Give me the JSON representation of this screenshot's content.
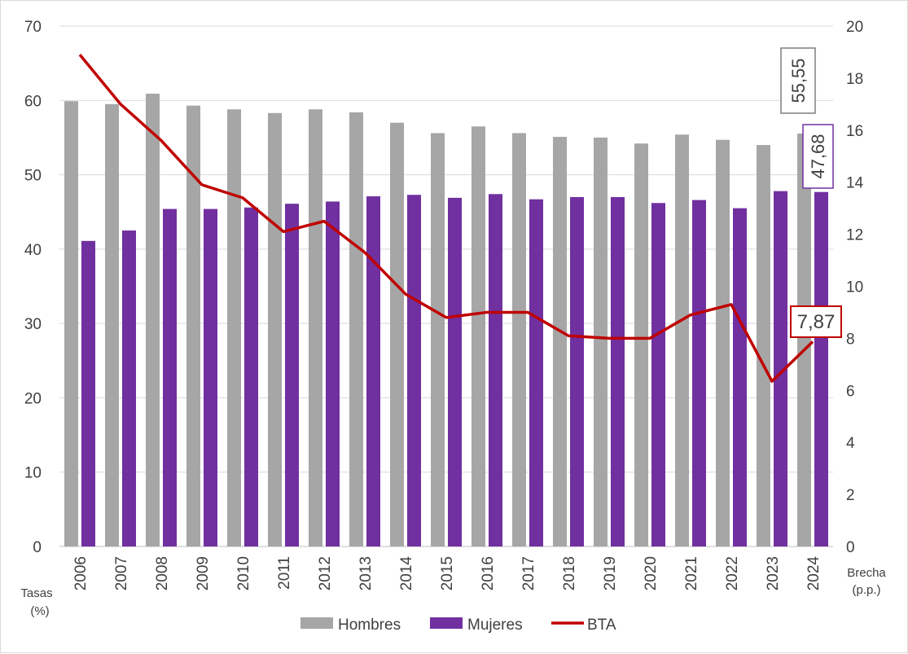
{
  "chart_data": {
    "type": "bar+line",
    "categories": [
      "2006",
      "2007",
      "2008",
      "2009",
      "2010",
      "2011",
      "2012",
      "2013",
      "2014",
      "2015",
      "2016",
      "2017",
      "2018",
      "2019",
      "2020",
      "2021",
      "2022",
      "2023",
      "2024"
    ],
    "series": [
      {
        "name": "Hombres",
        "type": "bar",
        "axis": "left",
        "color": "#a6a6a6",
        "values": [
          59.9,
          59.5,
          60.9,
          59.3,
          58.8,
          58.3,
          58.8,
          58.4,
          57.0,
          55.6,
          56.5,
          55.6,
          55.1,
          55.0,
          54.2,
          55.4,
          54.7,
          54.0,
          55.55
        ]
      },
      {
        "name": "Mujeres",
        "type": "bar",
        "axis": "left",
        "color": "#7030a0",
        "values": [
          41.1,
          42.5,
          45.4,
          45.4,
          45.6,
          46.1,
          46.4,
          47.1,
          47.3,
          46.9,
          47.4,
          46.7,
          47.0,
          47.0,
          46.2,
          46.6,
          45.5,
          47.8,
          47.68
        ]
      },
      {
        "name": "BTA",
        "type": "line",
        "axis": "right",
        "color": "#c00000",
        "values": [
          18.9,
          17.0,
          15.6,
          13.9,
          13.4,
          12.1,
          12.5,
          11.3,
          9.7,
          8.8,
          9.0,
          9.0,
          8.1,
          8.0,
          8.0,
          8.9,
          9.3,
          6.35,
          7.87
        ]
      }
    ],
    "data_labels": {
      "hombres_last": "55,55",
      "mujeres_last": "47,68",
      "bta_last": "7,87"
    },
    "y_left": {
      "label_line1": "Tasas",
      "label_line2": "(%)",
      "range": [
        0,
        70
      ],
      "ticks": [
        "0",
        "10",
        "20",
        "30",
        "40",
        "50",
        "60",
        "70"
      ]
    },
    "y_right": {
      "label_line1": "Brecha",
      "label_line2": "(p.p.)",
      "range": [
        0,
        20
      ],
      "ticks": [
        "0",
        "2",
        "4",
        "6",
        "8",
        "10",
        "12",
        "14",
        "16",
        "18",
        "20"
      ]
    },
    "grid": true,
    "legend_position": "bottom"
  }
}
